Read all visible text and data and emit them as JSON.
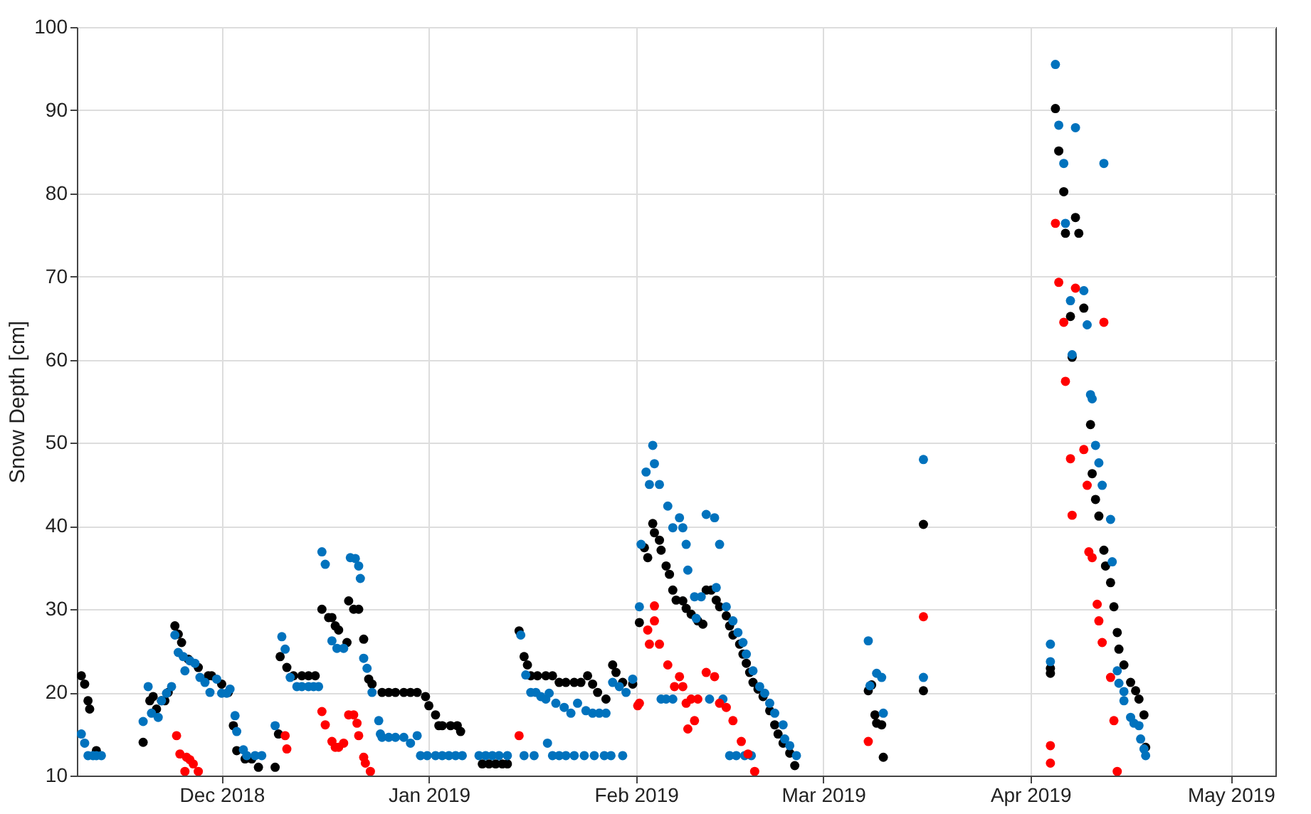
{
  "chart_data": {
    "type": "scatter",
    "ylabel": "Snow Depth [cm]",
    "marker": "circle",
    "grid": true,
    "xlim": [
      "2018-11-09T08:00",
      "2019-05-07T16:00"
    ],
    "xticks": [
      {
        "value": "2018-12-01",
        "label": "Dec 2018"
      },
      {
        "value": "2019-01-01",
        "label": "Jan 2019"
      },
      {
        "value": "2019-02-01",
        "label": "Feb 2019"
      },
      {
        "value": "2019-03-01",
        "label": "Mar 2019"
      },
      {
        "value": "2019-04-01",
        "label": "Apr 2019"
      },
      {
        "value": "2019-05-01",
        "label": "May 2019"
      }
    ],
    "ylim": [
      10,
      100
    ],
    "yticks": [
      10,
      20,
      30,
      40,
      50,
      60,
      70,
      80,
      90,
      100
    ],
    "series": [
      {
        "color": "#000000",
        "x": [
          "2018-11-10T00:00",
          "2018-11-10T12:00",
          "2018-11-11T00:00",
          "2018-11-11T06:00",
          "2018-11-12T06:00",
          "2018-11-19T06:00",
          "2018-11-20T06:00",
          "2018-11-20T18:00",
          "2018-11-21T06:00",
          "2018-11-22T00:00",
          "2018-11-22T12:00",
          "2018-11-23T00:00",
          "2018-11-24T00:00",
          "2018-11-24T12:00",
          "2018-11-25T00:00",
          "2018-11-26T00:00",
          "2018-11-27T12:00",
          "2018-11-29T00:00",
          "2018-11-29T12:00",
          "2018-12-01T00:00",
          "2018-12-02T00:00",
          "2018-12-02T18:00",
          "2018-12-03T06:00",
          "2018-12-04T12:00",
          "2018-12-05T12:00",
          "2018-12-06T12:00",
          "2018-12-09T00:00",
          "2018-12-09T12:00",
          "2018-12-09T18:00",
          "2018-12-10T18:00",
          "2018-12-11T18:00",
          "2018-12-13T00:00",
          "2018-12-14T00:00",
          "2018-12-15T00:00",
          "2018-12-16T00:00",
          "2018-12-17T00:00",
          "2018-12-17T12:00",
          "2018-12-18T00:00",
          "2018-12-18T12:00",
          "2018-12-19T18:00",
          "2018-12-20T00:00",
          "2018-12-20T18:00",
          "2018-12-21T12:00",
          "2018-12-22T06:00",
          "2018-12-23T00:00",
          "2018-12-23T12:00",
          "2018-12-25T00:00",
          "2018-12-26T00:00",
          "2018-12-27T00:00",
          "2018-12-28T06:00",
          "2018-12-29T06:00",
          "2018-12-30T06:00",
          "2018-12-31T12:00",
          "2019-01-01T00:00",
          "2019-01-02T00:00",
          "2019-01-02T12:00",
          "2019-01-03T00:00",
          "2019-01-04T06:00",
          "2019-01-05T06:00",
          "2019-01-05T18:00",
          "2019-01-09T00:00",
          "2019-01-10T00:00",
          "2019-01-11T00:00",
          "2019-01-12T00:00",
          "2019-01-12T18:00",
          "2019-01-14T12:00",
          "2019-01-15T06:00",
          "2019-01-15T18:00",
          "2019-01-16T06:00",
          "2019-01-17T06:00",
          "2019-01-18T12:00",
          "2019-01-19T12:00",
          "2019-01-20T12:00",
          "2019-01-21T12:00",
          "2019-01-22T18:00",
          "2019-01-23T18:00",
          "2019-01-24T18:00",
          "2019-01-25T12:00",
          "2019-01-26T06:00",
          "2019-01-27T12:00",
          "2019-01-28T12:00",
          "2019-01-29T00:00",
          "2019-01-30T00:00",
          "2019-01-31T12:00",
          "2019-02-01T12:00",
          "2019-02-02T06:00",
          "2019-02-02T18:00",
          "2019-02-03T12:00",
          "2019-02-03T18:00",
          "2019-02-04T12:00",
          "2019-02-04T18:00",
          "2019-02-05T12:00",
          "2019-02-06T00:00",
          "2019-02-06T12:00",
          "2019-02-07T00:00",
          "2019-02-08T00:00",
          "2019-02-08T12:00",
          "2019-02-09T06:00",
          "2019-02-10T06:00",
          "2019-02-11T00:00",
          "2019-02-11T12:00",
          "2019-02-12T06:00",
          "2019-02-13T00:00",
          "2019-02-13T12:00",
          "2019-02-14T12:00",
          "2019-02-15T00:00",
          "2019-02-15T12:00",
          "2019-02-16T12:00",
          "2019-02-17T00:00",
          "2019-02-17T12:00",
          "2019-02-18T00:00",
          "2019-02-18T12:00",
          "2019-02-19T06:00",
          "2019-02-20T00:00",
          "2019-02-21T00:00",
          "2019-02-21T18:00",
          "2019-02-22T06:00",
          "2019-02-23T00:00",
          "2019-02-24T00:00",
          "2019-02-24T18:00",
          "2019-03-07T18:00",
          "2019-03-08T06:00",
          "2019-03-08T18:00",
          "2019-03-09T00:00",
          "2019-03-09T18:00",
          "2019-03-10T00:00",
          "2019-03-16T00:00",
          "2019-03-16T00:00",
          "2019-04-04T00:00",
          "2019-04-04T00:00",
          "2019-04-04T18:00",
          "2019-04-05T06:00",
          "2019-04-06T00:00",
          "2019-04-06T06:00",
          "2019-04-07T00:00",
          "2019-04-07T06:00",
          "2019-04-07T18:00",
          "2019-04-08T06:00",
          "2019-04-09T00:00",
          "2019-04-10T00:00",
          "2019-04-10T06:00",
          "2019-04-10T18:00",
          "2019-04-11T06:00",
          "2019-04-12T00:00",
          "2019-04-12T06:00",
          "2019-04-13T00:00",
          "2019-04-13T12:00",
          "2019-04-14T00:00",
          "2019-04-14T06:00",
          "2019-04-15T00:00",
          "2019-04-16T00:00",
          "2019-04-16T18:00",
          "2019-04-17T06:00",
          "2019-04-18T00:00",
          "2019-04-18T06:00"
        ],
        "values": [
          22,
          21,
          19,
          18,
          13,
          14,
          19,
          19.5,
          18,
          19,
          19,
          20,
          28,
          27,
          26,
          24,
          23,
          22,
          22,
          21,
          20,
          16,
          13,
          12,
          12,
          11,
          11,
          15,
          24.3,
          23,
          22,
          22,
          22,
          22,
          30,
          29,
          29,
          28,
          27.5,
          26,
          31,
          30,
          30,
          26.4,
          21.6,
          21,
          20,
          20,
          20,
          20,
          20,
          20,
          19.5,
          18.4,
          17.3,
          16,
          16,
          16,
          16,
          15.3,
          11.4,
          11.4,
          11.4,
          11.4,
          11.4,
          27.4,
          24.3,
          23.3,
          22,
          22,
          22,
          22,
          21.2,
          21.2,
          21.2,
          21.2,
          22,
          21,
          20,
          19.2,
          23.3,
          22.4,
          21.2,
          21,
          28.4,
          37.4,
          36.2,
          40.3,
          39.2,
          38.3,
          37.1,
          35.2,
          34.2,
          32.3,
          31.1,
          31,
          30.1,
          29.4,
          28.6,
          28.2,
          32.3,
          32.3,
          31.1,
          30.3,
          29.2,
          28,
          26.9,
          25.8,
          24.6,
          23.5,
          22.4,
          21.2,
          20.4,
          19.5,
          17.8,
          16.1,
          15,
          13.9,
          12.7,
          11.2,
          20.2,
          20.9,
          17.3,
          16.3,
          16.1,
          12.2,
          40.2,
          20.2,
          22.3,
          22.9,
          90.2,
          85.1,
          80.2,
          75.2,
          65.2,
          60.3,
          77.1,
          75.2,
          66.2,
          52.2,
          46.3,
          43.2,
          41.2,
          37.1,
          35.2,
          33.2,
          30.3,
          27.2,
          25.2,
          23.3,
          21.2,
          20.2,
          19.2,
          17.3,
          13.4
        ]
      },
      {
        "color": "#0072bd",
        "x": [
          "2018-11-10T00:00",
          "2018-11-10T12:00",
          "2018-11-11T00:00",
          "2018-11-11T18:00",
          "2018-11-12T06:00",
          "2018-11-13T00:00",
          "2018-11-19T06:00",
          "2018-11-20T00:00",
          "2018-11-20T12:00",
          "2018-11-21T12:00",
          "2018-11-22T00:00",
          "2018-11-22T18:00",
          "2018-11-23T12:00",
          "2018-11-24T00:00",
          "2018-11-24T12:00",
          "2018-11-25T06:00",
          "2018-11-25T12:00",
          "2018-11-26T06:00",
          "2018-11-27T00:00",
          "2018-11-27T18:00",
          "2018-11-28T12:00",
          "2018-11-29T06:00",
          "2018-11-30T06:00",
          "2018-12-01T00:00",
          "2018-12-01T18:00",
          "2018-12-02T06:00",
          "2018-12-03T00:00",
          "2018-12-03T06:00",
          "2018-12-04T06:00",
          "2018-12-04T18:00",
          "2018-12-06T00:00",
          "2018-12-07T00:00",
          "2018-12-09T00:00",
          "2018-12-10T00:00",
          "2018-12-10T12:00",
          "2018-12-11T06:00",
          "2018-12-12T06:00",
          "2018-12-13T00:00",
          "2018-12-14T00:00",
          "2018-12-14T18:00",
          "2018-12-15T12:00",
          "2018-12-16T00:00",
          "2018-12-16T12:00",
          "2018-12-17T12:00",
          "2018-12-18T06:00",
          "2018-12-19T06:00",
          "2018-12-20T06:00",
          "2018-12-21T00:00",
          "2018-12-21T12:00",
          "2018-12-21T18:00",
          "2018-12-22T06:00",
          "2018-12-22T18:00",
          "2018-12-23T12:00",
          "2018-12-24T12:00",
          "2018-12-24T18:00",
          "2018-12-25T00:00",
          "2018-12-26T00:00",
          "2018-12-27T00:00",
          "2018-12-28T06:00",
          "2018-12-29T06:00",
          "2018-12-30T06:00",
          "2018-12-30T18:00",
          "2018-12-31T18:00",
          "2019-01-02T00:00",
          "2019-01-03T00:00",
          "2019-01-04T00:00",
          "2019-01-05T00:00",
          "2019-01-06T00:00",
          "2019-01-08T12:00",
          "2019-01-09T12:00",
          "2019-01-10T12:00",
          "2019-01-11T12:00",
          "2019-01-12T18:00",
          "2019-01-14T18:00",
          "2019-01-15T12:00",
          "2019-01-16T06:00",
          "2019-01-17T00:00",
          "2019-01-17T18:00",
          "2019-01-18T12:00",
          "2019-01-19T00:00",
          "2019-01-20T00:00",
          "2019-01-21T06:00",
          "2019-01-22T06:00",
          "2019-01-23T06:00",
          "2019-01-24T12:00",
          "2019-01-25T12:00",
          "2019-01-26T12:00",
          "2019-01-27T12:00",
          "2019-01-28T12:00",
          "2019-01-29T12:00",
          "2019-01-30T12:00",
          "2019-01-31T12:00",
          "2019-01-15T06:00",
          "2019-01-16T18:00",
          "2019-01-18T18:00",
          "2019-01-19T12:00",
          "2019-01-20T12:00",
          "2019-01-21T12:00",
          "2019-01-22T18:00",
          "2019-01-24T06:00",
          "2019-01-25T18:00",
          "2019-01-27T06:00",
          "2019-01-28T06:00",
          "2019-01-30T00:00",
          "2019-02-01T18:00",
          "2019-02-01T12:00",
          "2019-02-02T12:00",
          "2019-02-03T00:00",
          "2019-02-03T12:00",
          "2019-02-03T18:00",
          "2019-02-04T12:00",
          "2019-02-05T18:00",
          "2019-02-06T12:00",
          "2019-02-07T12:00",
          "2019-02-08T00:00",
          "2019-02-08T12:00",
          "2019-02-08T18:00",
          "2019-02-09T18:00",
          "2019-02-10T00:00",
          "2019-02-10T18:00",
          "2019-02-11T12:00",
          "2019-02-12T18:00",
          "2019-02-13T00:00",
          "2019-02-13T12:00",
          "2019-02-14T12:00",
          "2019-02-15T12:00",
          "2019-02-16T06:00",
          "2019-02-17T00:00",
          "2019-02-17T12:00",
          "2019-02-18T12:00",
          "2019-02-19T12:00",
          "2019-02-20T06:00",
          "2019-02-21T00:00",
          "2019-02-21T18:00",
          "2019-02-23T00:00",
          "2019-02-23T06:00",
          "2019-02-24T00:00",
          "2019-02-25T00:00",
          "2019-02-04T18:00",
          "2019-02-05T12:00",
          "2019-02-06T12:00",
          "2019-02-12T00:00",
          "2019-02-14T00:00",
          "2019-02-15T00:00",
          "2019-02-16T00:00",
          "2019-02-17T06:00",
          "2019-02-18T06:00",
          "2019-03-07T18:00",
          "2019-03-08T00:00",
          "2019-03-09T00:00",
          "2019-03-09T18:00",
          "2019-03-10T00:00",
          "2019-03-16T00:00",
          "2019-03-16T00:00",
          "2019-04-04T00:00",
          "2019-04-04T00:00",
          "2019-04-04T18:00",
          "2019-04-05T06:00",
          "2019-04-06T00:00",
          "2019-04-06T06:00",
          "2019-04-07T00:00",
          "2019-04-07T06:00",
          "2019-04-07T18:00",
          "2019-04-09T00:00",
          "2019-04-09T12:00",
          "2019-04-10T00:00",
          "2019-04-10T06:00",
          "2019-04-10T18:00",
          "2019-04-11T06:00",
          "2019-04-11T18:00",
          "2019-04-12T00:00",
          "2019-04-13T00:00",
          "2019-04-13T06:00",
          "2019-04-14T00:00",
          "2019-04-14T06:00",
          "2019-04-15T00:00",
          "2019-04-15T00:00",
          "2019-04-16T00:00",
          "2019-04-16T12:00",
          "2019-04-17T06:00",
          "2019-04-17T12:00",
          "2019-04-18T00:00",
          "2019-04-18T06:00"
        ],
        "values": [
          15,
          13.9,
          12.4,
          12.4,
          12.4,
          12.4,
          16.5,
          20.7,
          17.5,
          17,
          19,
          19.9,
          20.7,
          26.9,
          24.8,
          24.3,
          22.6,
          23.8,
          23.5,
          21.8,
          21.2,
          20,
          21.6,
          19.9,
          19.9,
          20.4,
          17.2,
          15.3,
          13.1,
          12.4,
          12.4,
          12.4,
          16,
          26.7,
          25.2,
          21.8,
          20.7,
          20.7,
          20.7,
          20.7,
          20.7,
          36.9,
          35.4,
          26.2,
          25.3,
          25.3,
          36.2,
          36.1,
          35.2,
          33.7,
          24.1,
          22.9,
          20,
          16.6,
          15,
          14.6,
          14.6,
          14.6,
          14.6,
          13.9,
          14.8,
          12.4,
          12.4,
          12.4,
          12.4,
          12.4,
          12.4,
          12.4,
          12.4,
          12.4,
          12.4,
          12.4,
          12.4,
          26.9,
          22.1,
          20,
          20,
          19.5,
          19.2,
          19.9,
          18.7,
          18.2,
          17.5,
          18.7,
          17.8,
          17.5,
          17.5,
          17.5,
          21.2,
          20.7,
          20,
          21.6,
          12.4,
          12.4,
          13.9,
          12.4,
          12.4,
          12.4,
          12.4,
          12.4,
          12.4,
          12.4,
          12.4,
          12.4,
          37.8,
          30.3,
          46.5,
          45,
          49.7,
          47.5,
          45,
          42.4,
          39.8,
          41,
          39.8,
          37.8,
          34.7,
          31.5,
          28.9,
          31.5,
          41.4,
          41,
          32.6,
          37.8,
          30.3,
          28.6,
          27.2,
          26,
          24.6,
          22.6,
          20.7,
          19.9,
          18.7,
          17.5,
          16.1,
          14.4,
          13.6,
          12.4,
          19.2,
          19.2,
          19.2,
          19.2,
          19.2,
          12.4,
          12.4,
          12.4,
          12.4,
          26.2,
          20.8,
          22.3,
          21.8,
          17.5,
          48,
          21.8,
          25.8,
          23.7,
          95.5,
          88.2,
          83.6,
          76.4,
          67.1,
          60.6,
          87.9,
          68.3,
          64.2,
          55.8,
          55.3,
          49.7,
          47.6,
          44.9,
          83.6,
          40.8,
          35.7,
          22.6,
          21.1,
          20.1,
          19,
          17,
          16.3,
          16,
          14.4,
          13.2,
          12.4
        ]
      },
      {
        "color": "#ff0000",
        "x": [
          "2018-11-24T06:00",
          "2018-11-24T18:00",
          "2018-11-25T12:00",
          "2018-11-25T18:00",
          "2018-11-26T06:00",
          "2018-11-26T18:00",
          "2018-11-27T12:00",
          "2018-12-10T12:00",
          "2018-12-10T18:00",
          "2018-12-16T00:00",
          "2018-12-16T12:00",
          "2018-12-17T12:00",
          "2018-12-18T00:00",
          "2018-12-18T12:00",
          "2018-12-19T06:00",
          "2018-12-20T00:00",
          "2018-12-20T18:00",
          "2018-12-21T06:00",
          "2018-12-21T12:00",
          "2018-12-22T06:00",
          "2018-12-22T12:00",
          "2018-12-23T06:00",
          "2019-01-14T12:00",
          "2019-02-01T06:00",
          "2019-02-01T12:00",
          "2019-02-02T18:00",
          "2019-02-03T00:00",
          "2019-02-03T18:00",
          "2019-02-03T18:00",
          "2019-02-04T12:00",
          "2019-02-05T18:00",
          "2019-02-06T18:00",
          "2019-02-07T12:00",
          "2019-02-08T00:00",
          "2019-02-08T12:00",
          "2019-02-08T18:00",
          "2019-02-09T06:00",
          "2019-02-09T18:00",
          "2019-02-10T06:00",
          "2019-02-11T12:00",
          "2019-02-12T18:00",
          "2019-02-13T12:00",
          "2019-02-14T12:00",
          "2019-02-15T12:00",
          "2019-02-16T18:00",
          "2019-02-17T18:00",
          "2019-02-18T18:00",
          "2019-03-07T18:00",
          "2019-03-16T00:00",
          "2019-04-04T00:00",
          "2019-04-04T00:00",
          "2019-04-04T18:00",
          "2019-04-05T06:00",
          "2019-04-06T00:00",
          "2019-04-06T06:00",
          "2019-04-07T00:00",
          "2019-04-07T06:00",
          "2019-04-07T18:00",
          "2019-04-09T00:00",
          "2019-04-09T12:00",
          "2019-04-09T18:00",
          "2019-04-10T06:00",
          "2019-04-11T00:00",
          "2019-04-11T06:00",
          "2019-04-11T18:00",
          "2019-04-12T00:00",
          "2019-04-13T00:00",
          "2019-04-13T12:00",
          "2019-04-14T00:00"
        ],
        "values": [
          14.8,
          12.6,
          10.5,
          12.2,
          11.9,
          11.4,
          10.5,
          14.8,
          13.2,
          17.7,
          16.1,
          14.1,
          13.4,
          13.4,
          13.9,
          17.3,
          17.3,
          16.3,
          14.8,
          12.2,
          11.5,
          10.5,
          14.8,
          18.4,
          18.7,
          27.5,
          25.8,
          30.4,
          28.6,
          25.8,
          23.3,
          20.7,
          21.9,
          20.7,
          18.7,
          15.6,
          19.2,
          16.6,
          19.2,
          22.4,
          21.9,
          18.7,
          18.2,
          16.6,
          14.1,
          12.6,
          10.5,
          14.1,
          29.1,
          13.6,
          11.5,
          76.4,
          69.3,
          64.5,
          57.4,
          48.1,
          41.3,
          68.6,
          49.2,
          44.9,
          36.9,
          36.2,
          30.6,
          28.6,
          26,
          64.5,
          21.8,
          16.6,
          10.5
        ]
      }
    ]
  }
}
